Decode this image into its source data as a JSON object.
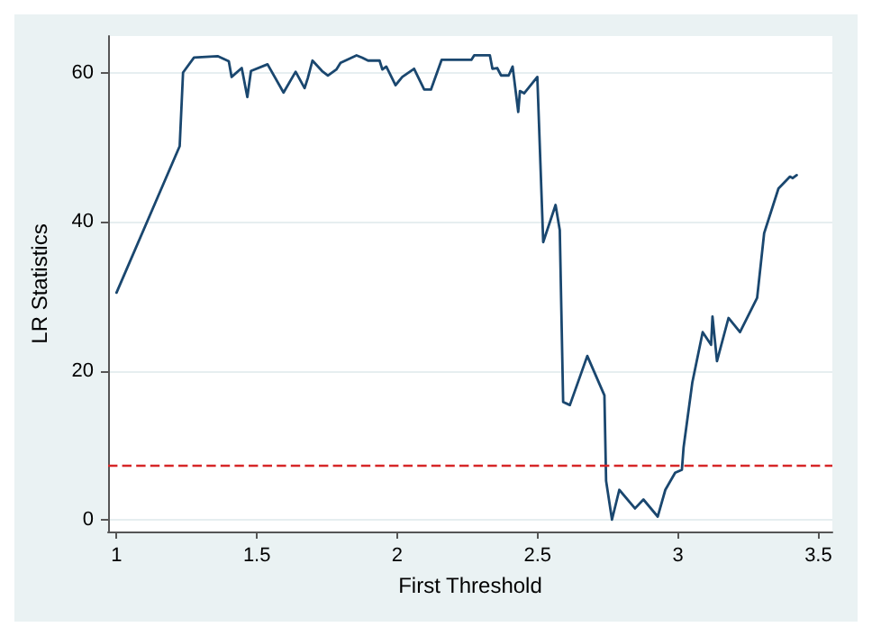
{
  "chart_data": {
    "type": "line",
    "xlabel": "First Threshold",
    "ylabel": "LR Statistics",
    "x": [
      1.0,
      1.225,
      1.237,
      1.276,
      1.36,
      1.4,
      1.41,
      1.446,
      1.466,
      1.479,
      1.538,
      1.595,
      1.638,
      1.67,
      1.681,
      1.698,
      1.732,
      1.753,
      1.783,
      1.798,
      1.855,
      1.875,
      1.896,
      1.937,
      1.947,
      1.961,
      1.994,
      2.018,
      2.06,
      2.096,
      2.12,
      2.158,
      2.2,
      2.264,
      2.274,
      2.33,
      2.339,
      2.356,
      2.37,
      2.397,
      2.411,
      2.431,
      2.437,
      2.452,
      2.499,
      2.52,
      2.564,
      2.579,
      2.591,
      2.615,
      2.677,
      2.738,
      2.744,
      2.765,
      2.791,
      2.847,
      2.877,
      2.928,
      2.955,
      2.99,
      3.014,
      3.02,
      3.051,
      3.088,
      3.118,
      3.123,
      3.139,
      3.18,
      3.221,
      3.282,
      3.307,
      3.358,
      3.399,
      3.409,
      3.423
    ],
    "series": [
      {
        "color": "#1a476f",
        "values": [
          30.5,
          50.2,
          60.1,
          62.1,
          62.3,
          61.6,
          59.5,
          60.7,
          56.8,
          60.3,
          61.2,
          57.4,
          60.2,
          58.0,
          59.3,
          61.7,
          60.3,
          59.7,
          60.5,
          61.4,
          62.4,
          62.1,
          61.7,
          61.7,
          60.5,
          60.9,
          58.4,
          59.5,
          60.6,
          57.8,
          57.8,
          61.8,
          61.8,
          61.8,
          62.4,
          62.4,
          60.6,
          60.7,
          59.7,
          59.7,
          60.9,
          54.8,
          57.6,
          57.3,
          59.5,
          37.3,
          42.3,
          38.9,
          15.8,
          15.4,
          22.0,
          16.7,
          5.2,
          0.0,
          4.0,
          1.5,
          2.7,
          0.4,
          4.0,
          6.3,
          6.7,
          9.7,
          18.4,
          25.2,
          23.5,
          27.3,
          21.3,
          27.1,
          25.2,
          29.8,
          38.5,
          44.5,
          46.1,
          45.9,
          46.3
        ]
      }
    ],
    "xlim": [
      0.97,
      3.55
    ],
    "xticks": [
      1,
      1.5,
      2,
      2.5,
      3,
      3.5
    ],
    "ylim": [
      -1.6,
      65
    ],
    "yticks": [
      0,
      20,
      40,
      60
    ],
    "grid": "y",
    "marker": "none",
    "line_style": "solid",
    "ref_lines": [
      {
        "axis": "y",
        "value": 7.3,
        "color": "#d62728",
        "line_style": "dashed"
      }
    ]
  }
}
